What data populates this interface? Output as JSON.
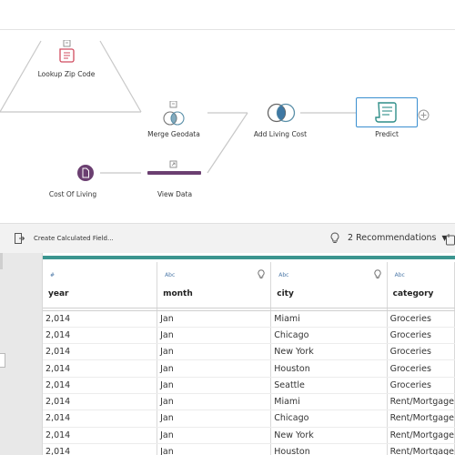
{
  "flow": {
    "nodes": {
      "lookup_zip": {
        "label": "Lookup Zip Code",
        "color": "#d14b5f"
      },
      "merge_geodata": {
        "label": "Merge Geodata",
        "color": "#5a8fa8"
      },
      "add_living_cost": {
        "label": "Add Living Cost",
        "color": "#5a8fa8"
      },
      "predict": {
        "label": "Predict",
        "color": "#2f8e88"
      },
      "cost_of_living": {
        "label": "Cost Of Living",
        "color": "#6b3f71"
      },
      "view_data": {
        "label": "View Data",
        "color": "#6b3f71"
      }
    }
  },
  "toolbar": {
    "create_calc_label": "Create Calculated Field...",
    "recommendations_label": "2 Recommendations",
    "caret": "▼"
  },
  "grid": {
    "accent_color": "#3b958f",
    "columns": [
      {
        "name": "year",
        "type": "#"
      },
      {
        "name": "month",
        "type": "Abc"
      },
      {
        "name": "city",
        "type": "Abc"
      },
      {
        "name": "category",
        "type": "Abc"
      }
    ],
    "rows": [
      [
        "2,014",
        "Jan",
        "Miami",
        "Groceries"
      ],
      [
        "2,014",
        "Jan",
        "Chicago",
        "Groceries"
      ],
      [
        "2,014",
        "Jan",
        "New York",
        "Groceries"
      ],
      [
        "2,014",
        "Jan",
        "Houston",
        "Groceries"
      ],
      [
        "2,014",
        "Jan",
        "Seattle",
        "Groceries"
      ],
      [
        "2,014",
        "Jan",
        "Miami",
        "Rent/Mortgage"
      ],
      [
        "2,014",
        "Jan",
        "Chicago",
        "Rent/Mortgage"
      ],
      [
        "2,014",
        "Jan",
        "New York",
        "Rent/Mortgage"
      ],
      [
        "2,014",
        "Jan",
        "Houston",
        "Rent/Mortgage"
      ]
    ]
  }
}
